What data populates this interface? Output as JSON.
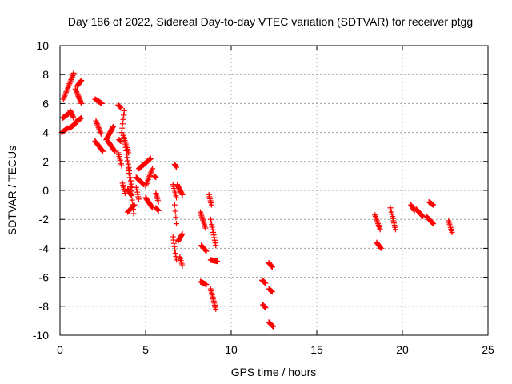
{
  "chart_data": {
    "type": "scatter",
    "title": "Day 186 of 2022, Sidereal Day-to-day VTEC variation (SDTVAR) for receiver ptgg",
    "xlabel": "GPS time / hours",
    "ylabel": "SDTVAR / TECUs",
    "xlim": [
      0,
      25
    ],
    "ylim": [
      -10,
      10
    ],
    "xticks": [
      0,
      5,
      10,
      15,
      20,
      25
    ],
    "yticks": [
      -10,
      -8,
      -6,
      -4,
      -2,
      0,
      2,
      4,
      6,
      8,
      10
    ],
    "grid": true,
    "marker": "plus",
    "color": "#ff0000",
    "segments": [
      [
        0.1,
        4.0,
        0.45,
        4.3
      ],
      [
        0.15,
        5.0,
        0.5,
        5.3
      ],
      [
        0.2,
        6.3,
        0.8,
        8.1
      ],
      [
        0.55,
        4.3,
        0.9,
        4.6
      ],
      [
        0.6,
        5.5,
        0.8,
        5.0
      ],
      [
        0.9,
        4.7,
        1.25,
        5.0
      ],
      [
        0.9,
        7.0,
        1.25,
        6.0
      ],
      [
        1.0,
        7.2,
        1.25,
        7.6
      ],
      [
        2.05,
        6.3,
        2.45,
        6.0
      ],
      [
        2.1,
        4.8,
        2.4,
        3.9
      ],
      [
        2.05,
        3.4,
        2.5,
        2.7
      ],
      [
        2.7,
        3.5,
        3.1,
        4.4
      ],
      [
        2.8,
        3.4,
        3.2,
        2.7
      ],
      [
        3.4,
        5.9,
        3.55,
        5.7
      ],
      [
        3.4,
        2.6,
        3.6,
        1.7
      ],
      [
        3.45,
        3.5,
        3.55,
        3.4
      ],
      [
        3.6,
        4.0,
        3.75,
        5.5
      ],
      [
        3.65,
        0.5,
        3.8,
        -0.2
      ],
      [
        3.7,
        3.8,
        4.0,
        2.6
      ],
      [
        3.8,
        3.2,
        4.2,
        0.2
      ],
      [
        3.95,
        0.1,
        4.15,
        -0.3
      ],
      [
        3.95,
        -1.5,
        4.35,
        -1.0
      ],
      [
        4.0,
        1.5,
        4.3,
        -1.6
      ],
      [
        4.45,
        0.9,
        4.9,
        0.4
      ],
      [
        4.45,
        0.2,
        4.6,
        -0.6
      ],
      [
        4.6,
        1.5,
        5.3,
        2.2
      ],
      [
        5.0,
        -0.5,
        5.4,
        -1.2
      ],
      [
        5.0,
        0.3,
        5.4,
        1.5
      ],
      [
        5.5,
        1.0,
        5.6,
        0.9
      ],
      [
        5.6,
        -0.2,
        5.75,
        -0.8
      ],
      [
        5.6,
        -1.2,
        5.75,
        -1.4
      ],
      [
        6.7,
        1.8,
        6.8,
        1.6
      ],
      [
        6.6,
        0.4,
        6.8,
        -0.5
      ],
      [
        6.7,
        -1.0,
        6.8,
        -2.3
      ],
      [
        6.6,
        -3.2,
        6.8,
        -4.8
      ],
      [
        6.9,
        -3.5,
        7.15,
        -3.0
      ],
      [
        6.85,
        0.4,
        7.15,
        -0.3
      ],
      [
        7.0,
        -4.6,
        7.15,
        -5.2
      ],
      [
        8.2,
        -1.5,
        8.5,
        -2.6
      ],
      [
        8.25,
        -3.8,
        8.55,
        -4.2
      ],
      [
        8.2,
        -6.3,
        8.55,
        -6.5
      ],
      [
        8.7,
        -0.3,
        8.85,
        -1.0
      ],
      [
        8.8,
        -2.0,
        9.1,
        -3.8
      ],
      [
        8.8,
        -4.8,
        9.2,
        -4.9
      ],
      [
        8.8,
        -6.8,
        9.1,
        -8.2
      ],
      [
        11.8,
        -6.2,
        12.0,
        -6.4
      ],
      [
        11.85,
        -7.9,
        12.0,
        -8.1
      ],
      [
        12.2,
        -5.0,
        12.4,
        -5.3
      ],
      [
        12.2,
        -6.8,
        12.4,
        -7.0
      ],
      [
        12.2,
        -9.1,
        12.45,
        -9.4
      ],
      [
        18.4,
        -1.7,
        18.7,
        -2.7
      ],
      [
        18.5,
        -3.6,
        18.75,
        -4.0
      ],
      [
        19.3,
        -1.2,
        19.6,
        -2.7
      ],
      [
        20.5,
        -1.0,
        20.7,
        -1.4
      ],
      [
        20.8,
        -1.3,
        21.2,
        -1.8
      ],
      [
        21.55,
        -0.8,
        21.8,
        -1.0
      ],
      [
        21.4,
        -1.8,
        21.8,
        -2.3
      ],
      [
        22.7,
        -2.1,
        22.9,
        -2.9
      ]
    ]
  }
}
